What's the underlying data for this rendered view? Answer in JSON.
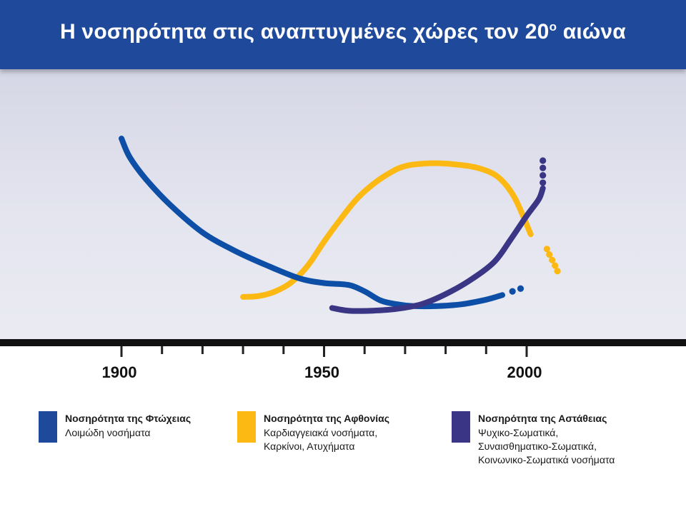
{
  "header": {
    "title_main": "Η νοσηρότητα στις αναπτυγμένες χώρες τον 20",
    "title_sup": "ο",
    "title_end": " αιώνα",
    "color": "#1f4a9c"
  },
  "chart_data": {
    "type": "line",
    "title": "Η νοσηρότητα στις αναπτυγμένες χώρες τον 20ο αιώνα",
    "xlabel": "",
    "ylabel": "",
    "xlim": [
      1900,
      2000
    ],
    "ylim": [
      0,
      100
    ],
    "grid": false,
    "tick_labels": [
      "1900",
      "1950",
      "2000"
    ],
    "minor_ticks": [
      1900,
      1910,
      1920,
      1930,
      1940,
      1950,
      1960,
      1970,
      1980,
      1990,
      2000
    ],
    "series": [
      {
        "name": "Νοσηρότητα της Φτώχειας",
        "description": "Λοιμώδη νοσήματα",
        "color": "#0d4ea6",
        "points": [
          [
            1900,
            100
          ],
          [
            1902,
            90
          ],
          [
            1906,
            78
          ],
          [
            1912,
            64
          ],
          [
            1920,
            49
          ],
          [
            1928,
            39
          ],
          [
            1936,
            31
          ],
          [
            1944,
            24
          ],
          [
            1950,
            21.5
          ],
          [
            1956,
            20.5
          ],
          [
            1960,
            17
          ],
          [
            1964,
            12
          ],
          [
            1968,
            10
          ],
          [
            1972,
            9
          ],
          [
            1978,
            9
          ],
          [
            1984,
            10
          ],
          [
            1990,
            12.5
          ],
          [
            1994,
            15
          ]
        ],
        "dots": [
          [
            1996.5,
            17
          ],
          [
            1998.5,
            18.5
          ]
        ]
      },
      {
        "name": "Νοσηρότητα της Αφθονίας",
        "description": "Καρδιαγγειακά νοσήματα, Καρκίνοι, Ατυχήματα",
        "color": "#fdb913",
        "points": [
          [
            1930,
            14
          ],
          [
            1934,
            14.5
          ],
          [
            1938,
            17
          ],
          [
            1942,
            22
          ],
          [
            1946,
            31
          ],
          [
            1950,
            44
          ],
          [
            1954,
            56
          ],
          [
            1958,
            67
          ],
          [
            1962,
            75
          ],
          [
            1966,
            81
          ],
          [
            1970,
            85
          ],
          [
            1976,
            86.5
          ],
          [
            1982,
            86
          ],
          [
            1988,
            84
          ],
          [
            1993,
            79
          ],
          [
            1997,
            68
          ],
          [
            2001,
            48
          ]
        ],
        "dots": [
          [
            2005,
            40
          ],
          [
            2005.6,
            37
          ],
          [
            2006.3,
            34
          ],
          [
            2007,
            31
          ],
          [
            2007.6,
            28
          ]
        ]
      },
      {
        "name": "Νοσηρότητα της Αστάθειας",
        "description": "Ψυχικο-Σωματικά, Συναισθηματικο-Σωματικά, Κοινωνικο-Σωματικά νοσήματα",
        "color": "#3a3585",
        "points": [
          [
            1952,
            8
          ],
          [
            1956,
            6.5
          ],
          [
            1962,
            6.5
          ],
          [
            1968,
            7.5
          ],
          [
            1974,
            10
          ],
          [
            1980,
            15.5
          ],
          [
            1986,
            23
          ],
          [
            1992,
            33
          ],
          [
            1996,
            45
          ],
          [
            2000,
            58
          ],
          [
            2003,
            67
          ],
          [
            2004,
            73
          ]
        ],
        "dots": [
          [
            2004,
            76
          ],
          [
            2004,
            80
          ],
          [
            2004,
            84
          ],
          [
            2004,
            88
          ]
        ]
      }
    ],
    "legend_position": "bottom"
  },
  "legend": [
    {
      "title": "Νοσηρότητα της Φτώχειας",
      "lines": [
        "Λοιμώδη νοσήματα"
      ],
      "color": "#1f4a9c"
    },
    {
      "title": "Νοσηρότητα της Αφθονίας",
      "lines": [
        "Καρδιαγγειακά νοσήματα,",
        "Καρκίνοι, Ατυχήματα"
      ],
      "color": "#fdb913"
    },
    {
      "title": "Νοσηρότητα της Αστάθειας",
      "lines": [
        "Ψυχικο-Σωματικά,",
        "Συναισθηματικο-Σωματικά,",
        "Κοινωνικο-Σωματικά νοσήματα"
      ],
      "color": "#3a3585"
    }
  ]
}
